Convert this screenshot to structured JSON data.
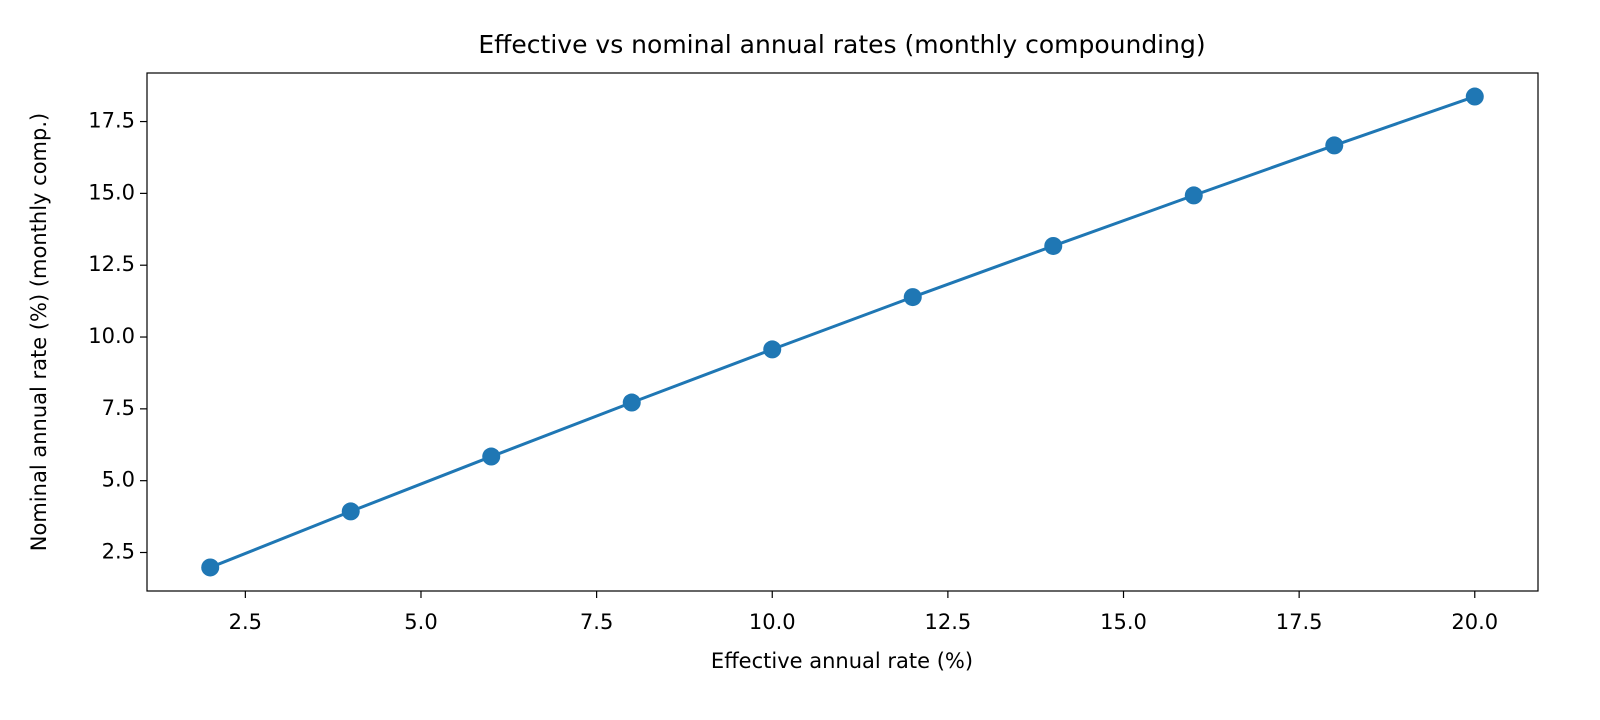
{
  "chart_data": {
    "type": "line",
    "title": "Effective vs nominal annual rates (monthly compounding)",
    "xlabel": "Effective annual rate (%)",
    "ylabel": "Nominal annual rate (%) (monthly comp.)",
    "x": [
      2,
      4,
      6,
      8,
      10,
      12,
      14,
      16,
      18,
      20
    ],
    "values": [
      1.98,
      3.93,
      5.84,
      7.72,
      9.57,
      11.39,
      13.17,
      14.93,
      16.67,
      18.37
    ],
    "color": "#1f77b4",
    "markers": true,
    "grid": false,
    "xlim": [
      1.1,
      20.9
    ],
    "ylim": [
      1.16,
      19.19
    ],
    "xticks": [
      2.5,
      {
        "value": 5,
        "label": "5.0"
      },
      7.5,
      {
        "value": 10,
        "label": "10.0"
      },
      12.5,
      {
        "value": 15,
        "label": "15.0"
      },
      17.5,
      {
        "value": 20,
        "label": "20.0"
      }
    ],
    "yticks": [
      2.5,
      {
        "value": 5,
        "label": "5.0"
      },
      7.5,
      {
        "value": 10,
        "label": "10.0"
      },
      12.5,
      {
        "value": 15,
        "label": "15.0"
      },
      17.5
    ]
  }
}
